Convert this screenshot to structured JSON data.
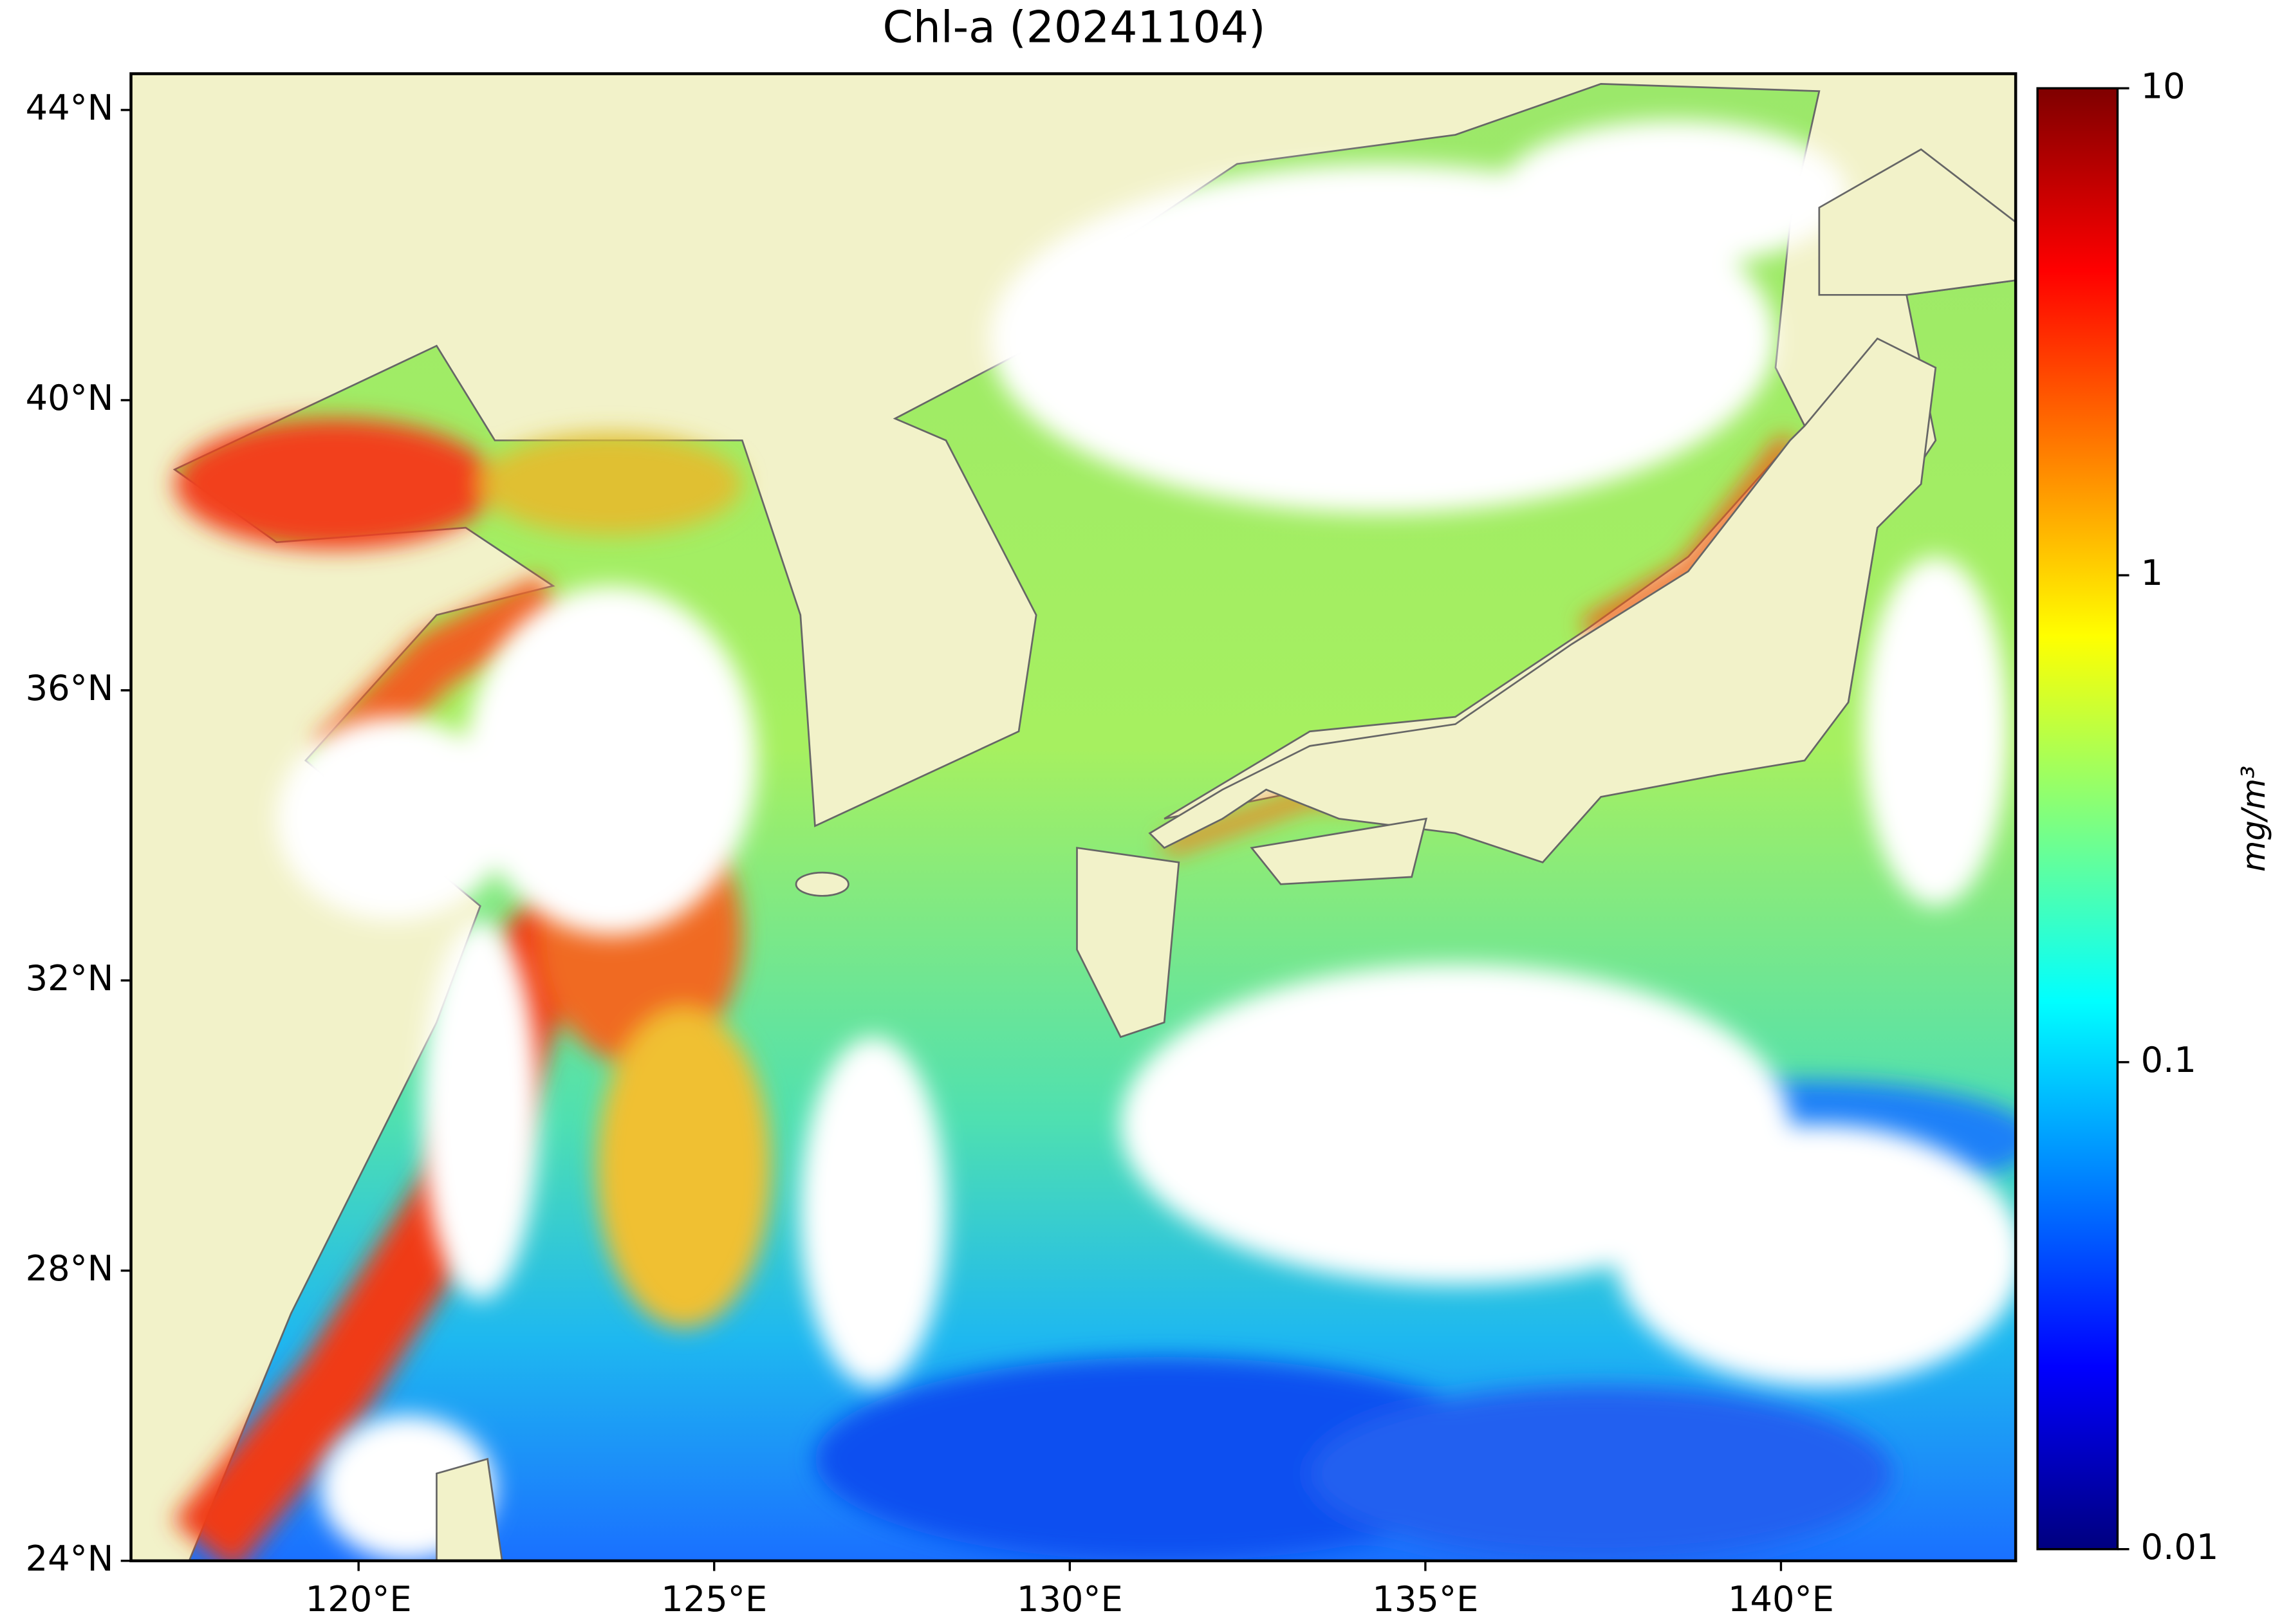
{
  "chart_data": {
    "type": "map",
    "title": "Chl-a (20241104)",
    "xlim": [
      116.8,
      143.3
    ],
    "ylim": [
      24,
      44.5
    ],
    "xticks": [
      {
        "value": 120,
        "label": "120°E"
      },
      {
        "value": 125,
        "label": "125°E"
      },
      {
        "value": 130,
        "label": "130°E"
      },
      {
        "value": 135,
        "label": "135°E"
      },
      {
        "value": 140,
        "label": "140°E"
      }
    ],
    "yticks": [
      {
        "value": 24,
        "label": "24°N"
      },
      {
        "value": 28,
        "label": "28°N"
      },
      {
        "value": 32,
        "label": "32°N"
      },
      {
        "value": 36,
        "label": "36°N"
      },
      {
        "value": 40,
        "label": "40°N"
      },
      {
        "value": 44,
        "label": "44°N"
      }
    ],
    "colorbar": {
      "label": "mg/m³",
      "log": true,
      "lim": [
        0.01,
        10
      ],
      "ticks": [
        0.01,
        0.1,
        1,
        10
      ],
      "colors": [
        "#00007f",
        "#0000ff",
        "#007fff",
        "#00ffff",
        "#7fff7f",
        "#ffff00",
        "#ff7f00",
        "#ff0000",
        "#7f0000"
      ]
    }
  }
}
